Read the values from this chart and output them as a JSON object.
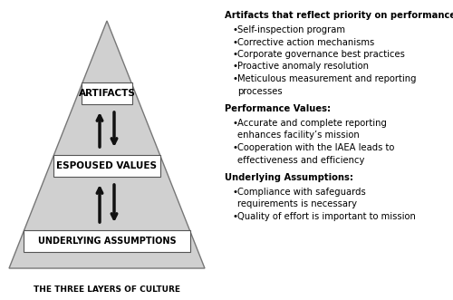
{
  "bg_color": "#ffffff",
  "triangle_color": "#d0d0d0",
  "triangle_edge_color": "#777777",
  "box_color": "#ffffff",
  "box_edge_color": "#555555",
  "arrow_color": "#111111",
  "label_artifacts": "ARTIFACTS",
  "label_espoused": "ESPOUSED VALUES",
  "label_underlying": "UNDERLYING ASSUMPTIONS",
  "bottom_label": "THE THREE LAYERS OF CULTURE",
  "right_title1": "Artifacts that reflect priority on performance:",
  "right_bullets1": [
    "Self-inspection program",
    "Corrective action mechanisms",
    "Corporate governance best practices",
    "Proactive anomaly resolution",
    "Meticulous measurement and reporting\nprocesses"
  ],
  "right_title2": "Performance Values:",
  "right_bullets2": [
    "Accurate and complete reporting\nenhances facility’s mission",
    "Cooperation with the IAEA leads to\neffectiveness and efficiency"
  ],
  "right_title3": "Underlying Assumptions:",
  "right_bullets3": [
    "Compliance with safeguards\nrequirements is necessary",
    "Quality of effort is important to mission"
  ],
  "fig_width": 5.0,
  "fig_height": 3.31,
  "dpi": 100
}
